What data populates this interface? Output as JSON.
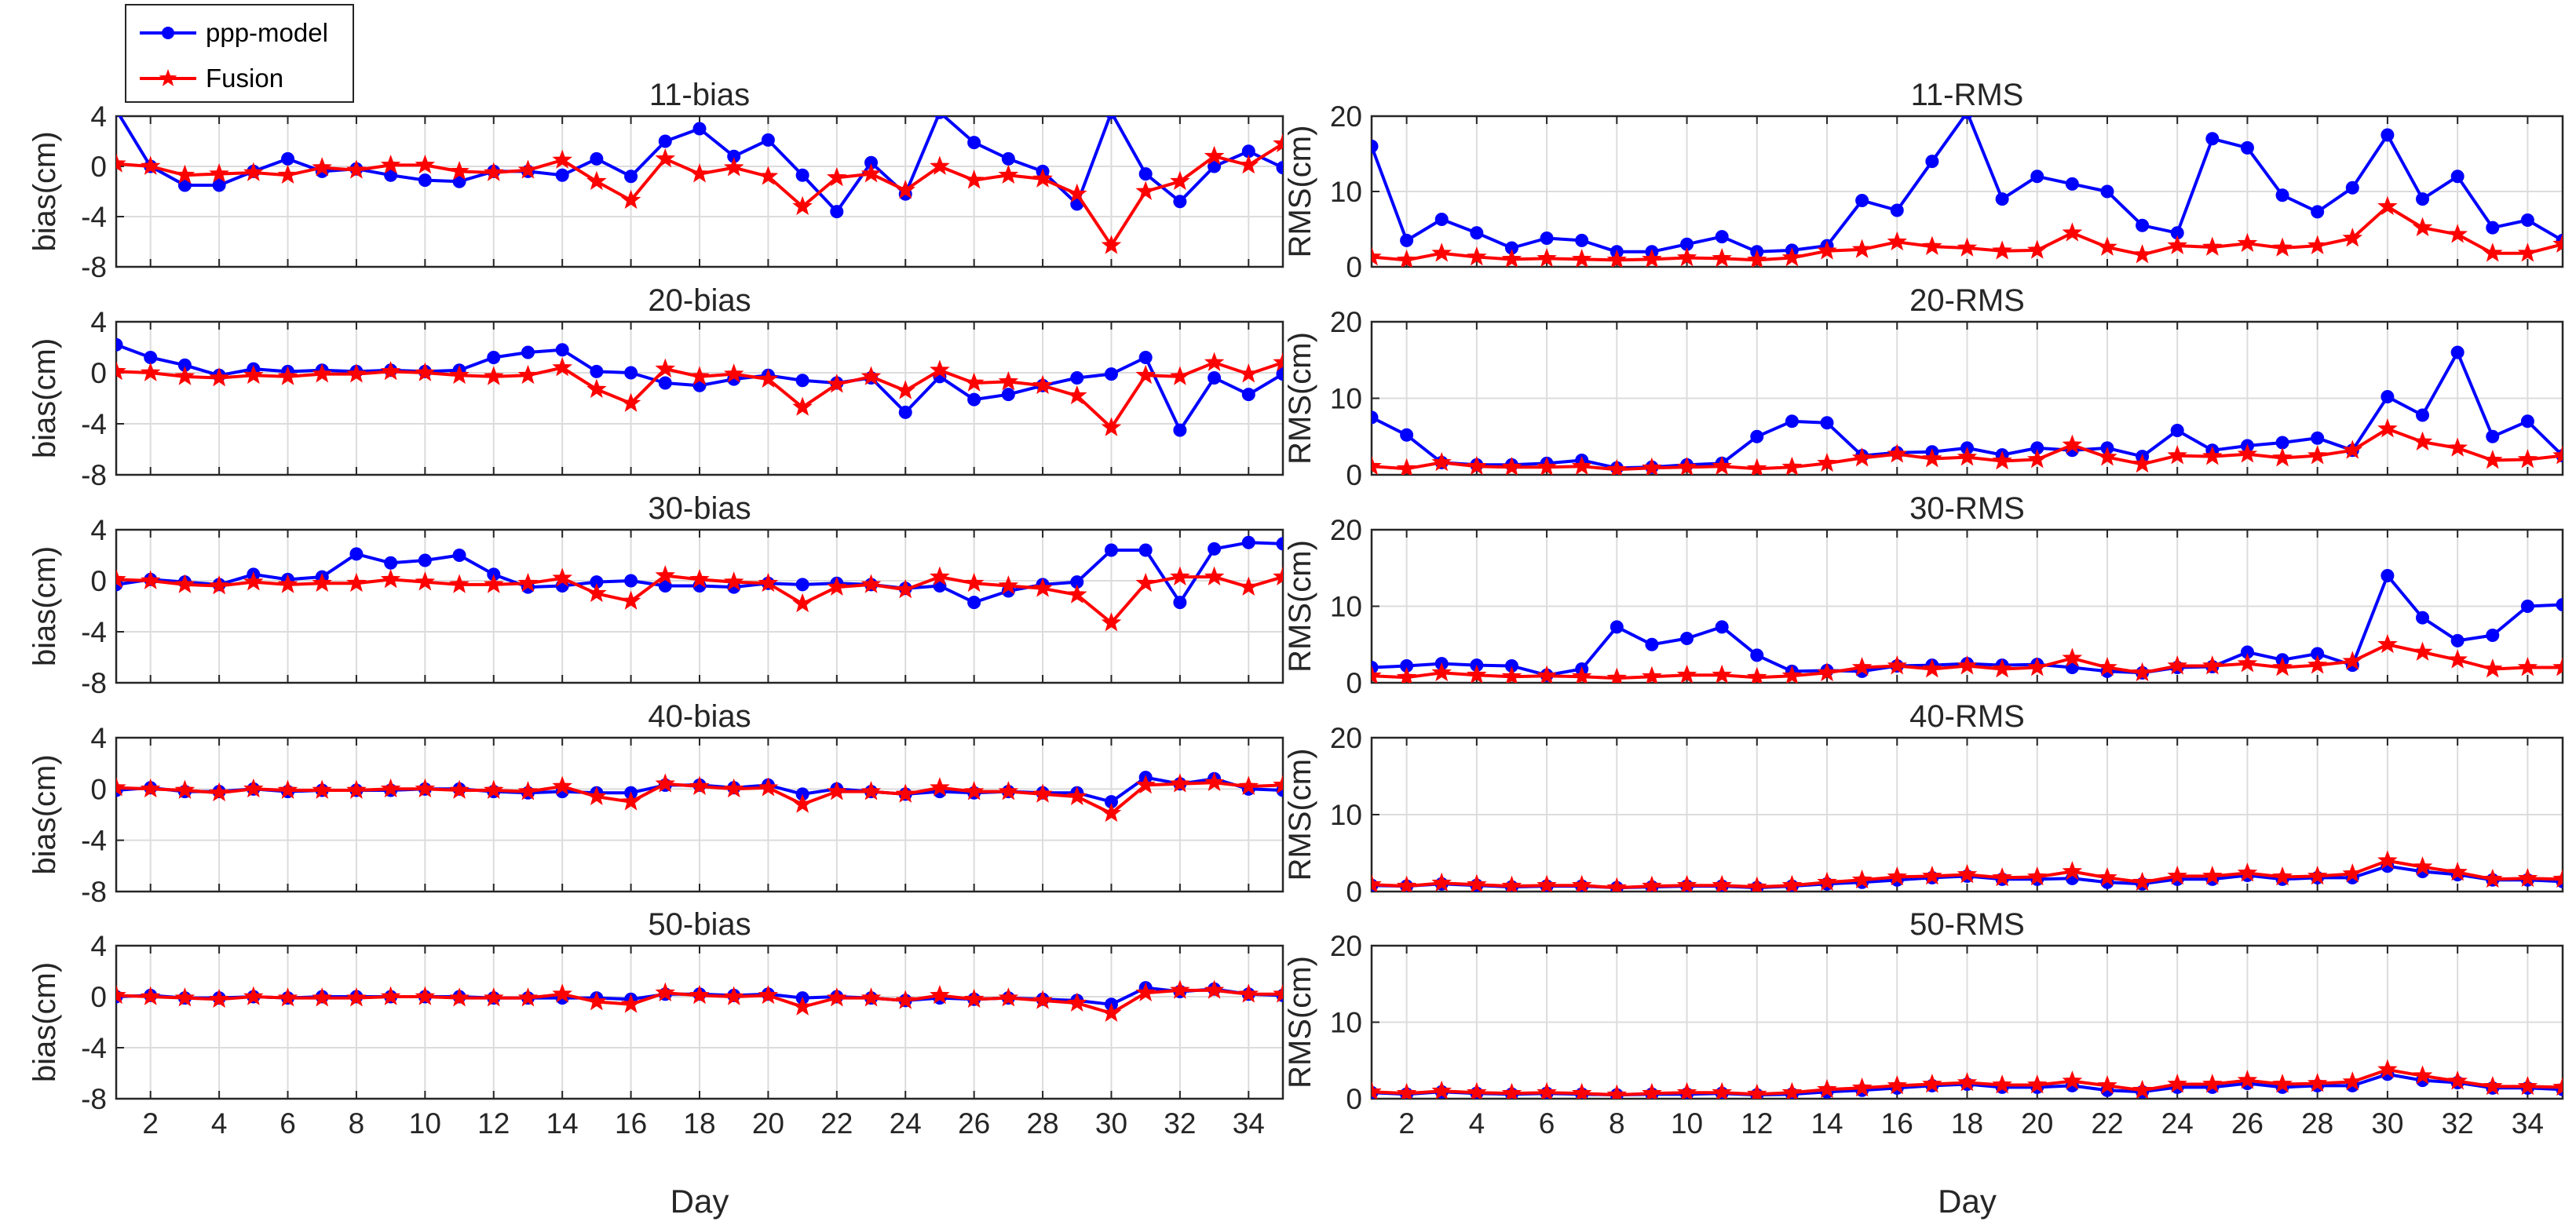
{
  "chart_data": {
    "type": "line",
    "legend": {
      "position": "top-left",
      "entries": [
        "ppp-model",
        "Fusion"
      ]
    },
    "colors": {
      "ppp-model": "#0000ff",
      "Fusion": "#ff0000",
      "grid": "#dcdcdc",
      "axis": "#262626"
    },
    "xlabel": "Day",
    "x_ticks": [
      2,
      4,
      6,
      8,
      10,
      12,
      14,
      16,
      18,
      20,
      22,
      24,
      26,
      28,
      30,
      32,
      34
    ],
    "x_tick_labels": [
      "2",
      "4",
      "6",
      "8",
      "10",
      "12",
      "14",
      "16",
      "18",
      "20",
      "22",
      "24",
      "26",
      "28",
      "30",
      "32",
      "34"
    ],
    "xlim": [
      1,
      35
    ],
    "days": [
      1,
      2,
      3,
      4,
      5,
      6,
      7,
      8,
      9,
      10,
      11,
      12,
      13,
      14,
      15,
      16,
      17,
      18,
      19,
      20,
      21,
      22,
      23,
      24,
      25,
      26,
      27,
      28,
      29,
      30,
      31,
      32,
      33,
      34,
      35
    ],
    "bias_axis": {
      "ylabel": "bias(cm)",
      "ylim": [
        -8,
        4
      ],
      "ticks": [
        4,
        0,
        -4,
        -8
      ],
      "tick_labels": [
        "4",
        "0",
        "-4",
        "-8"
      ]
    },
    "rms_axis": {
      "ylabel": "RMS(cm)",
      "ylim": [
        0,
        20
      ],
      "ticks": [
        20,
        10,
        0
      ],
      "tick_labels": [
        "20",
        "10",
        "0"
      ]
    },
    "panels": [
      {
        "id": "11-bias",
        "title": "11-bias",
        "column": "left",
        "row": 0,
        "kind": "bias",
        "series": [
          {
            "name": "ppp-model",
            "values": [
              4.5,
              0.0,
              -1.5,
              -1.5,
              -0.4,
              0.6,
              -0.4,
              -0.2,
              -0.7,
              -1.1,
              -1.2,
              -0.4,
              -0.4,
              -0.7,
              0.6,
              -0.8,
              2.0,
              3.0,
              0.8,
              2.1,
              -0.7,
              -3.6,
              0.3,
              -2.2,
              4.3,
              1.9,
              0.6,
              -0.4,
              -3.0,
              4.3,
              -0.6,
              -2.8,
              0.0,
              1.2,
              -0.1
            ]
          },
          {
            "name": "Fusion",
            "values": [
              0.2,
              0.0,
              -0.7,
              -0.6,
              -0.5,
              -0.7,
              -0.1,
              -0.3,
              0.1,
              0.1,
              -0.4,
              -0.5,
              -0.3,
              0.5,
              -1.2,
              -2.7,
              0.6,
              -0.6,
              -0.1,
              -0.8,
              -3.2,
              -0.9,
              -0.6,
              -1.9,
              0.0,
              -1.1,
              -0.7,
              -1.0,
              -2.2,
              -6.3,
              -2.0,
              -1.2,
              0.8,
              0.1,
              1.8
            ]
          }
        ]
      },
      {
        "id": "20-bias",
        "title": "20-bias",
        "column": "left",
        "row": 1,
        "kind": "bias",
        "series": [
          {
            "name": "ppp-model",
            "values": [
              2.2,
              1.2,
              0.6,
              -0.2,
              0.3,
              0.1,
              0.2,
              0.1,
              0.2,
              0.1,
              0.2,
              1.2,
              1.6,
              1.8,
              0.1,
              0.0,
              -0.8,
              -1.0,
              -0.5,
              -0.2,
              -0.6,
              -0.8,
              -0.4,
              -3.1,
              -0.3,
              -2.1,
              -1.7,
              -1.0,
              -0.4,
              -0.1,
              1.2,
              -4.5,
              -0.4,
              -1.7,
              -0.1
            ]
          },
          {
            "name": "Fusion",
            "values": [
              0.1,
              0.0,
              -0.3,
              -0.4,
              -0.2,
              -0.3,
              -0.1,
              -0.1,
              0.1,
              0.0,
              -0.2,
              -0.3,
              -0.2,
              0.4,
              -1.3,
              -2.4,
              0.3,
              -0.3,
              -0.1,
              -0.5,
              -2.7,
              -0.9,
              -0.3,
              -1.4,
              0.2,
              -0.8,
              -0.7,
              -1.0,
              -1.8,
              -4.3,
              -0.2,
              -0.3,
              0.8,
              -0.1,
              0.8
            ]
          }
        ]
      },
      {
        "id": "30-bias",
        "title": "30-bias",
        "column": "left",
        "row": 2,
        "kind": "bias",
        "series": [
          {
            "name": "ppp-model",
            "values": [
              -0.3,
              0.1,
              -0.1,
              -0.3,
              0.5,
              0.1,
              0.3,
              2.1,
              1.4,
              1.6,
              2.0,
              0.5,
              -0.5,
              -0.4,
              -0.1,
              0.0,
              -0.4,
              -0.4,
              -0.5,
              -0.2,
              -0.3,
              -0.2,
              -0.3,
              -0.6,
              -0.4,
              -1.7,
              -0.8,
              -0.3,
              -0.1,
              2.4,
              2.4,
              -1.7,
              2.5,
              3.0,
              2.9
            ]
          },
          {
            "name": "Fusion",
            "values": [
              0.1,
              0.0,
              -0.3,
              -0.4,
              -0.1,
              -0.3,
              -0.2,
              -0.2,
              0.1,
              -0.1,
              -0.3,
              -0.3,
              -0.2,
              0.2,
              -1.0,
              -1.6,
              0.4,
              0.1,
              -0.1,
              -0.2,
              -1.8,
              -0.5,
              -0.3,
              -0.7,
              0.3,
              -0.2,
              -0.4,
              -0.6,
              -1.1,
              -3.3,
              -0.2,
              0.3,
              0.3,
              -0.5,
              0.3
            ]
          }
        ]
      },
      {
        "id": "40-bias",
        "title": "40-bias",
        "column": "left",
        "row": 3,
        "kind": "bias",
        "series": [
          {
            "name": "ppp-model",
            "values": [
              -0.1,
              0.1,
              -0.2,
              -0.2,
              0.0,
              -0.2,
              -0.1,
              -0.1,
              -0.1,
              0.0,
              0.0,
              -0.2,
              -0.3,
              -0.2,
              -0.3,
              -0.3,
              0.3,
              0.3,
              0.1,
              0.3,
              -0.4,
              0.0,
              -0.2,
              -0.4,
              -0.2,
              -0.3,
              -0.2,
              -0.3,
              -0.3,
              -1.0,
              0.9,
              0.4,
              0.8,
              0.0,
              -0.1
            ]
          },
          {
            "name": "Fusion",
            "values": [
              0.1,
              0.0,
              -0.1,
              -0.3,
              0.0,
              -0.1,
              -0.1,
              -0.1,
              0.0,
              0.0,
              -0.1,
              -0.1,
              -0.2,
              0.2,
              -0.6,
              -1.0,
              0.4,
              0.2,
              0.0,
              0.1,
              -1.2,
              -0.2,
              -0.2,
              -0.4,
              0.1,
              -0.2,
              -0.2,
              -0.4,
              -0.6,
              -1.9,
              0.3,
              0.4,
              0.5,
              0.2,
              0.3
            ]
          }
        ]
      },
      {
        "id": "50-bias",
        "title": "50-bias",
        "column": "left",
        "row": 4,
        "kind": "bias",
        "series": [
          {
            "name": "ppp-model",
            "values": [
              0.0,
              0.1,
              -0.1,
              -0.1,
              0.0,
              -0.1,
              0.0,
              0.0,
              0.0,
              0.0,
              0.0,
              -0.1,
              -0.1,
              -0.1,
              -0.1,
              -0.2,
              0.2,
              0.2,
              0.1,
              0.2,
              -0.1,
              0.0,
              -0.1,
              -0.3,
              -0.1,
              -0.2,
              -0.1,
              -0.2,
              -0.3,
              -0.6,
              0.7,
              0.4,
              0.6,
              0.2,
              0.1
            ]
          },
          {
            "name": "Fusion",
            "values": [
              0.1,
              0.0,
              -0.1,
              -0.2,
              0.0,
              -0.1,
              -0.1,
              -0.1,
              0.0,
              0.0,
              -0.1,
              -0.1,
              -0.1,
              0.2,
              -0.4,
              -0.6,
              0.3,
              0.1,
              0.0,
              0.1,
              -0.8,
              -0.1,
              -0.1,
              -0.3,
              0.1,
              -0.2,
              -0.1,
              -0.3,
              -0.5,
              -1.3,
              0.3,
              0.5,
              0.5,
              0.2,
              0.2
            ]
          }
        ]
      },
      {
        "id": "11-RMS",
        "title": "11-RMS",
        "column": "right",
        "row": 0,
        "kind": "rms",
        "series": [
          {
            "name": "ppp-model",
            "values": [
              16.0,
              3.5,
              6.3,
              4.5,
              2.5,
              3.8,
              3.5,
              2.0,
              2.0,
              3.0,
              4.0,
              2.0,
              2.2,
              2.8,
              8.8,
              7.5,
              14.0,
              20.5,
              9.0,
              12.0,
              11.0,
              10.0,
              5.5,
              4.5,
              17.0,
              15.8,
              9.5,
              7.3,
              10.5,
              17.5,
              9.0,
              12.0,
              5.2,
              6.2,
              3.5
            ]
          },
          {
            "name": "Fusion",
            "values": [
              1.3,
              0.9,
              1.8,
              1.3,
              1.0,
              1.1,
              1.0,
              0.9,
              1.0,
              1.2,
              1.1,
              0.9,
              1.2,
              2.1,
              2.3,
              3.3,
              2.7,
              2.5,
              2.1,
              2.2,
              4.5,
              2.6,
              1.6,
              2.8,
              2.6,
              3.1,
              2.5,
              2.8,
              3.8,
              8.0,
              5.2,
              4.3,
              1.8,
              1.8,
              3.0
            ]
          }
        ]
      },
      {
        "id": "20-RMS",
        "title": "20-RMS",
        "column": "right",
        "row": 1,
        "kind": "rms",
        "series": [
          {
            "name": "ppp-model",
            "values": [
              7.5,
              5.2,
              1.6,
              1.3,
              1.3,
              1.5,
              1.9,
              0.9,
              1.0,
              1.3,
              1.5,
              5.0,
              7.0,
              6.8,
              2.5,
              2.9,
              3.0,
              3.5,
              2.6,
              3.5,
              3.2,
              3.5,
              2.4,
              5.8,
              3.2,
              3.8,
              4.2,
              4.8,
              3.2,
              10.2,
              7.8,
              16.0,
              5.0,
              7.0,
              2.5
            ]
          },
          {
            "name": "Fusion",
            "values": [
              1.1,
              0.8,
              1.6,
              1.1,
              1.0,
              1.0,
              1.1,
              0.7,
              0.9,
              1.0,
              1.1,
              0.8,
              1.0,
              1.5,
              2.2,
              2.7,
              2.1,
              2.3,
              1.8,
              2.0,
              3.9,
              2.3,
              1.4,
              2.5,
              2.4,
              2.7,
              2.2,
              2.5,
              3.2,
              6.0,
              4.3,
              3.5,
              1.9,
              2.0,
              2.5
            ]
          }
        ]
      },
      {
        "id": "30-RMS",
        "title": "30-RMS",
        "column": "right",
        "row": 2,
        "kind": "rms",
        "series": [
          {
            "name": "ppp-model",
            "values": [
              2.0,
              2.2,
              2.5,
              2.3,
              2.2,
              1.0,
              1.8,
              7.3,
              5.0,
              5.8,
              7.3,
              3.6,
              1.5,
              1.6,
              1.5,
              2.2,
              2.3,
              2.5,
              2.3,
              2.4,
              2.0,
              1.5,
              1.3,
              2.0,
              2.1,
              4.0,
              3.0,
              3.8,
              2.3,
              14.0,
              8.5,
              5.5,
              6.2,
              10.0,
              10.2
            ]
          },
          {
            "name": "Fusion",
            "values": [
              0.9,
              0.7,
              1.3,
              1.0,
              0.8,
              0.9,
              0.8,
              0.6,
              0.8,
              1.0,
              1.0,
              0.7,
              0.9,
              1.3,
              2.0,
              2.2,
              1.8,
              2.2,
              1.8,
              2.0,
              3.2,
              2.0,
              1.3,
              2.2,
              2.2,
              2.5,
              2.0,
              2.3,
              2.8,
              5.0,
              4.0,
              3.0,
              1.8,
              2.0,
              2.0
            ]
          }
        ]
      },
      {
        "id": "40-RMS",
        "title": "40-RMS",
        "column": "right",
        "row": 3,
        "kind": "rms",
        "series": [
          {
            "name": "ppp-model",
            "values": [
              0.8,
              0.7,
              1.0,
              0.8,
              0.6,
              0.7,
              0.7,
              0.5,
              0.6,
              0.7,
              0.7,
              0.5,
              0.7,
              1.0,
              1.2,
              1.5,
              1.8,
              2.0,
              1.6,
              1.6,
              1.7,
              1.2,
              1.0,
              1.6,
              1.6,
              2.1,
              1.6,
              1.8,
              1.8,
              3.3,
              2.6,
              2.2,
              1.5,
              1.5,
              1.3
            ]
          },
          {
            "name": "Fusion",
            "values": [
              0.9,
              0.7,
              1.1,
              0.9,
              0.7,
              0.8,
              0.8,
              0.5,
              0.7,
              0.8,
              0.8,
              0.6,
              0.8,
              1.2,
              1.5,
              1.9,
              2.0,
              2.2,
              1.8,
              1.9,
              2.6,
              1.8,
              1.2,
              2.0,
              2.0,
              2.4,
              1.9,
              2.0,
              2.3,
              4.0,
              3.2,
              2.5,
              1.6,
              1.7,
              1.6
            ]
          }
        ]
      },
      {
        "id": "50-RMS",
        "title": "50-RMS",
        "column": "right",
        "row": 4,
        "kind": "rms",
        "series": [
          {
            "name": "ppp-model",
            "values": [
              0.8,
              0.6,
              0.9,
              0.7,
              0.6,
              0.7,
              0.6,
              0.5,
              0.6,
              0.6,
              0.7,
              0.5,
              0.6,
              0.9,
              1.1,
              1.4,
              1.7,
              1.9,
              1.5,
              1.5,
              1.7,
              1.1,
              0.9,
              1.5,
              1.5,
              2.0,
              1.5,
              1.7,
              1.7,
              3.2,
              2.4,
              2.1,
              1.4,
              1.4,
              1.2
            ]
          },
          {
            "name": "Fusion",
            "values": [
              0.9,
              0.7,
              1.0,
              0.8,
              0.7,
              0.8,
              0.7,
              0.5,
              0.7,
              0.8,
              0.8,
              0.6,
              0.8,
              1.2,
              1.4,
              1.7,
              1.9,
              2.1,
              1.8,
              1.8,
              2.3,
              1.7,
              1.1,
              1.9,
              1.9,
              2.4,
              1.9,
              2.0,
              2.2,
              3.8,
              3.0,
              2.3,
              1.6,
              1.6,
              1.5
            ]
          }
        ]
      }
    ]
  }
}
